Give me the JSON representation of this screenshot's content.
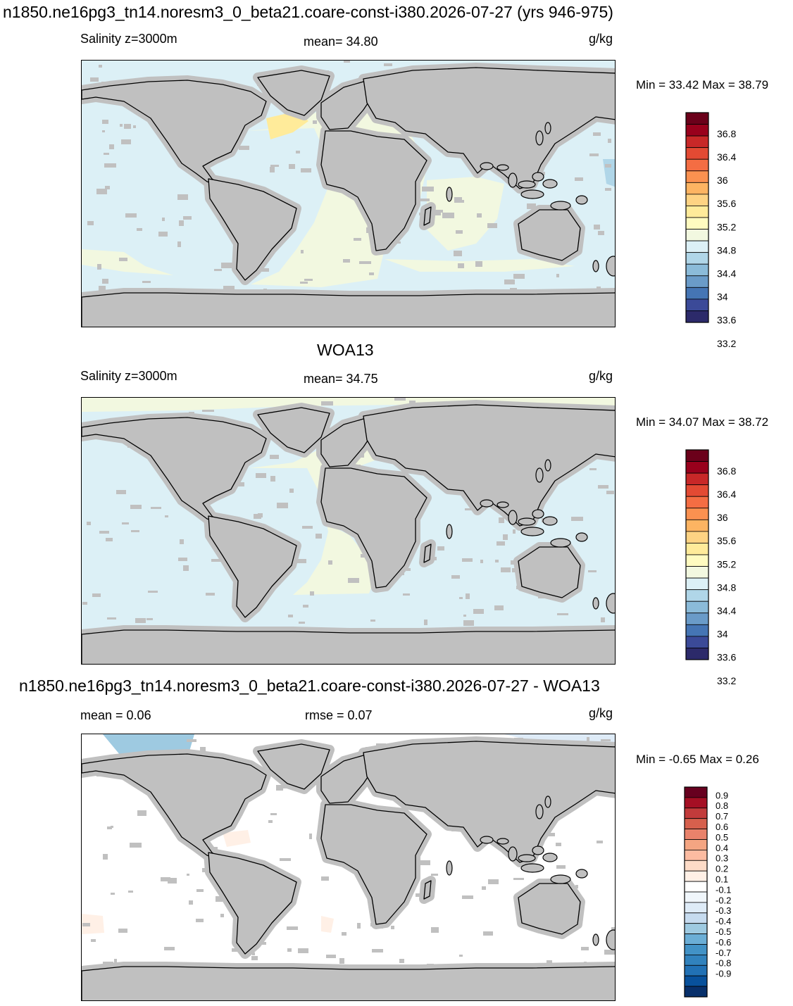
{
  "colors": {
    "land": "#c0c0c0",
    "coast": "#000000",
    "abs_scale": [
      "#2c2a6a",
      "#3b4a98",
      "#4575b4",
      "#6a9bc8",
      "#8bbbd9",
      "#b0d6e8",
      "#dcf0f6",
      "#f2f8e0",
      "#fffbc0",
      "#ffeb9a",
      "#fed383",
      "#fdb462",
      "#fb9150",
      "#f46d43",
      "#e34a33",
      "#c82828",
      "#99001c",
      "#6b001a"
    ],
    "diff_scale": [
      "#08306b",
      "#08519c",
      "#2171b5",
      "#3182bd",
      "#4292c6",
      "#6baed6",
      "#9ecae1",
      "#c6dbef",
      "#deebf7",
      "#f0f6fb",
      "#ffffff",
      "#fff0e6",
      "#fddbc7",
      "#fcbba1",
      "#f4a582",
      "#e9826b",
      "#d6604d",
      "#c23b3b",
      "#a50f24",
      "#67001f"
    ]
  },
  "chart_data": [
    {
      "type": "heatmap",
      "title": "n1850.ne16pg3_tn14.noresm3_0_beta21.coare-const-i380.2026-07-27 (yrs 946-975)",
      "left_label": "Salinity z=3000m",
      "center_label": "mean=  34.80",
      "units": "g/kg",
      "minmax": "Min =  33.42 Max =  38.79",
      "ocean_value": 34.6,
      "colorbar_ticks": [
        "36.8",
        "36.4",
        "36",
        "35.6",
        "35.2",
        "34.8",
        "34.4",
        "34",
        "33.6",
        "33.2"
      ]
    },
    {
      "type": "heatmap",
      "title": "WOA13",
      "left_label": "Salinity z=3000m",
      "center_label": "mean=  34.75",
      "units": "g/kg",
      "minmax": "Min =  34.07 Max =  38.72",
      "ocean_value": 34.6,
      "colorbar_ticks": [
        "36.8",
        "36.4",
        "36",
        "35.6",
        "35.2",
        "34.8",
        "34.4",
        "34",
        "33.6",
        "33.2"
      ]
    },
    {
      "type": "heatmap",
      "title": "n1850.ne16pg3_tn14.noresm3_0_beta21.coare-const-i380.2026-07-27 - WOA13",
      "left_label": "mean =   0.06",
      "center_label": "rmse =   0.07",
      "units": "g/kg",
      "minmax": "Min =  -0.65 Max =   0.26",
      "ocean_value": 0.0,
      "colorbar_ticks": [
        "0.9",
        "0.8",
        "0.7",
        "0.6",
        "0.5",
        "0.4",
        "0.3",
        "0.2",
        "0.1",
        "-0.1",
        "-0.2",
        "-0.3",
        "-0.4",
        "-0.5",
        "-0.6",
        "-0.7",
        "-0.8",
        "-0.9"
      ]
    }
  ]
}
